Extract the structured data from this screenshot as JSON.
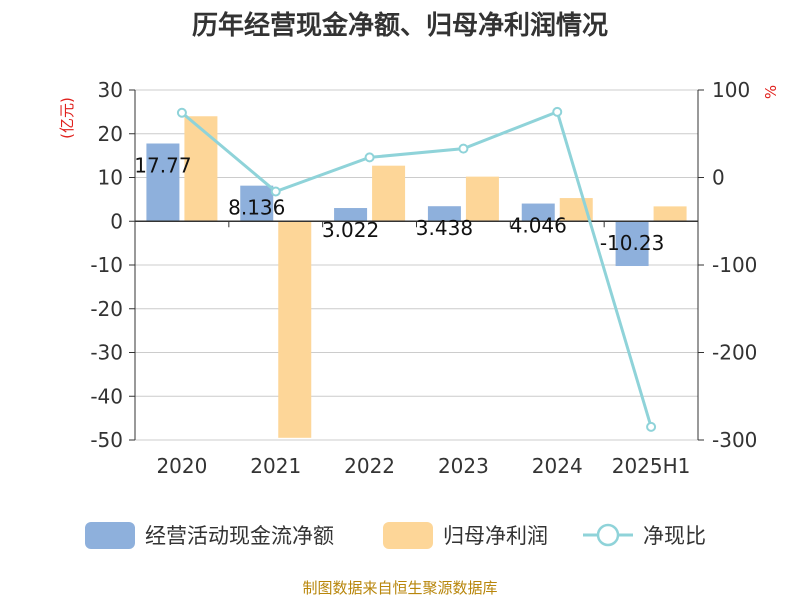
{
  "chart_data": {
    "type": "bar",
    "title": "历年经营现金净额、归母净利润情况",
    "categories": [
      "2020",
      "2021",
      "2022",
      "2023",
      "2024",
      "2025H1"
    ],
    "series": [
      {
        "name": "经营活动现金流净额",
        "kind": "bar",
        "axis": "left",
        "color": "#8eb0dc",
        "values": [
          17.77,
          8.136,
          3.022,
          3.438,
          4.046,
          -10.23
        ],
        "labels": [
          "17.77",
          "8.136",
          "3.022",
          "3.438",
          "4.046",
          "-10.23"
        ]
      },
      {
        "name": "归母净利润",
        "kind": "bar",
        "axis": "left",
        "color": "#fdd698",
        "values": [
          24.0,
          -49.5,
          12.7,
          10.2,
          5.3,
          3.4
        ]
      },
      {
        "name": "净现比",
        "kind": "line",
        "axis": "right",
        "color": "#8fd3d9",
        "values": [
          74,
          -16,
          23,
          33,
          75,
          -285
        ]
      }
    ],
    "y_left": {
      "label": "(亿元)",
      "min": -50,
      "max": 30,
      "ticks": [
        "30",
        "20",
        "10",
        "0",
        "-10",
        "-20",
        "-30",
        "-40",
        "-50"
      ]
    },
    "y_right": {
      "label": "%",
      "min": -300,
      "max": 100,
      "ticks": [
        "100",
        "0",
        "-100",
        "-200",
        "-300"
      ]
    },
    "grid": true,
    "legend": "bottom"
  },
  "source": "制图数据来自恒生聚源数据库"
}
